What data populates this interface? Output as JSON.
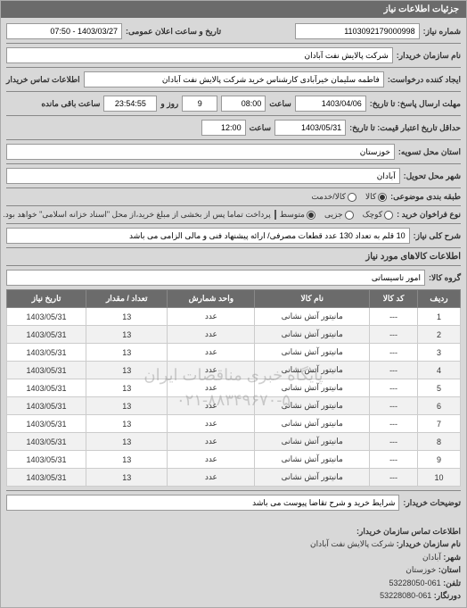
{
  "header": {
    "title": "جزئیات اطلاعات نیاز"
  },
  "fields": {
    "request_no_label": "شماره نیاز:",
    "request_no": "1103092179000998",
    "announce_label": "تاریخ و ساعت اعلان عمومی:",
    "announce_value": "1403/03/27 - 07:50",
    "buyer_name_label": "نام سازمان خریدار:",
    "buyer_name": "شرکت پالایش نفت آبادان",
    "requester_label": "ایجاد کننده درخواست:",
    "requester": "فاطمه سلیمان خیرآبادی کارشناس خرید شرکت پالایش نفت آبادان",
    "contact_label": "اطلاعات تماس خریدار",
    "deadline_label": "مهلت ارسال پاسخ: تا تاریخ:",
    "deadline_date": "1403/04/06",
    "time_label": "ساعت",
    "deadline_time": "08:00",
    "remain_days": "9",
    "remain_days_label": "روز و",
    "remain_time": "23:54:55",
    "remain_label": "ساعت باقی مانده",
    "validity_label": "حداقل تاریخ اعتبار قیمت: تا تاریخ:",
    "validity_date": "1403/05/31",
    "validity_time": "12:00",
    "province_label": "استان محل تسویه:",
    "province": "خوزستان",
    "city_label": "شهر محل تحویل:",
    "city": "آبادان",
    "budget_label": "طبقه بندی موضوعی:",
    "budget_opts": [
      "کالا",
      "کالا/خدمت"
    ],
    "size_label": "نوع فراخوان خرید :",
    "size_opts": [
      "کوچک",
      "جزیی",
      "متوسط"
    ],
    "payment_note": "پرداخت تماما پس از بخشی از مبلغ خرید،از محل \"اسناد خزانه اسلامی\" خواهد بود.",
    "desc_label": "شرح کلی نیاز:",
    "desc": "10 قلم به تعداد 130 عدد قطعات مصرفی/ ارائه پیشنهاد فنی و مالی الزامی می باشد",
    "goods_section": "اطلاعات کالاهای مورد نیاز",
    "group_label": "گروه کالا:",
    "group": "امور تاسیساتی",
    "buyer_note_label": "توضیحات خریدار:",
    "buyer_note": "شرایط خرید و شرح تقاضا پیوست می باشد"
  },
  "table": {
    "columns": [
      "ردیف",
      "کد کالا",
      "نام کالا",
      "واحد شمارش",
      "تعداد / مقدار",
      "تاریخ نیاز"
    ],
    "rows": [
      [
        "1",
        "---",
        "مانیتور آتش نشانی",
        "عدد",
        "13",
        "1403/05/31"
      ],
      [
        "2",
        "---",
        "مانیتور آتش نشانی",
        "عدد",
        "13",
        "1403/05/31"
      ],
      [
        "3",
        "---",
        "مانیتور آتش نشانی",
        "عدد",
        "13",
        "1403/05/31"
      ],
      [
        "4",
        "---",
        "مانیتور آتش نشانی",
        "عدد",
        "13",
        "1403/05/31"
      ],
      [
        "5",
        "---",
        "مانیتور آتش نشانی",
        "عدد",
        "13",
        "1403/05/31"
      ],
      [
        "6",
        "---",
        "مانیتور آتش نشانی",
        "عدد",
        "13",
        "1403/05/31"
      ],
      [
        "7",
        "---",
        "مانیتور آتش نشانی",
        "عدد",
        "13",
        "1403/05/31"
      ],
      [
        "8",
        "---",
        "مانیتور آتش نشانی",
        "عدد",
        "13",
        "1403/05/31"
      ],
      [
        "9",
        "---",
        "مانیتور آتش نشانی",
        "عدد",
        "13",
        "1403/05/31"
      ],
      [
        "10",
        "---",
        "مانیتور آتش نشانی",
        "عدد",
        "13",
        "1403/05/31"
      ]
    ]
  },
  "watermark": {
    "line1": "پایگاه خبری مناقصات ایران",
    "line2": "۰۲۱-۸۸۳۴۹۶۷۰-۵"
  },
  "footer": {
    "heading": "اطلاعات تماس سازمان خریدار:",
    "org_label": "نام سازمان خریدار:",
    "org": "شرکت پالایش نفت آبادان",
    "city_label": "شهر:",
    "city": "آبادان",
    "province_label": "استان:",
    "province": "خوزستان",
    "phone_label": "تلفن:",
    "phone": "061-53228050",
    "fax_label": "دورنگار:",
    "fax": "061-53228080"
  }
}
